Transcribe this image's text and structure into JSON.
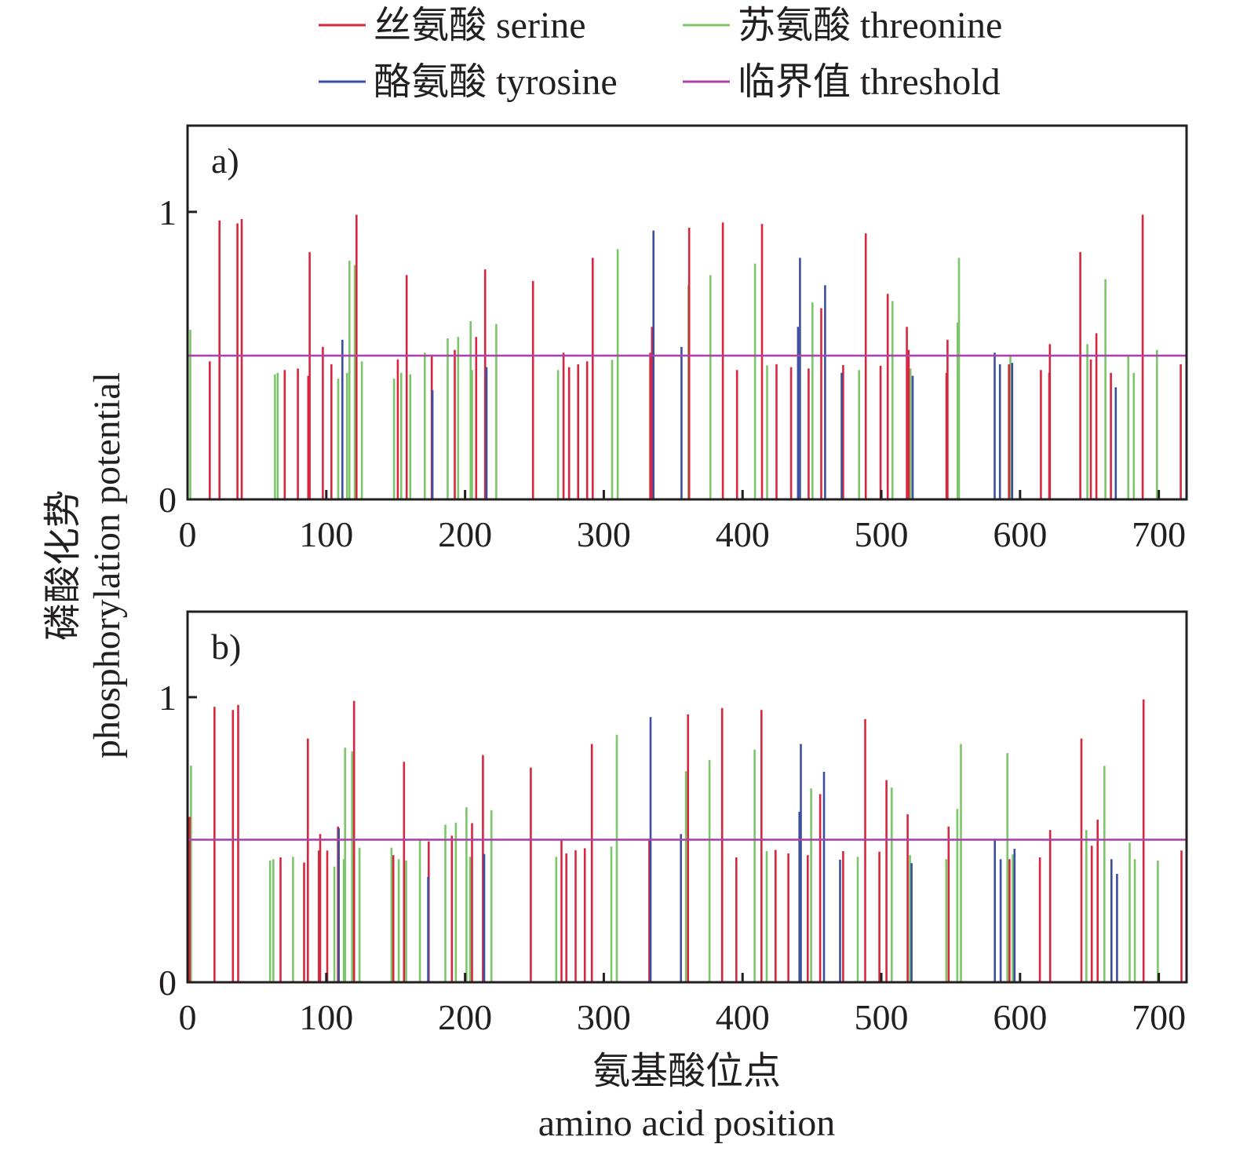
{
  "chart_data": {
    "type": "bar",
    "subtype": "stem/needle plot",
    "xlabel_zh": "氨基酸位点",
    "xlabel": "amino acid position",
    "ylabel_zh": "磷酸化势",
    "ylabel": "phosphorylation potential",
    "xlim": [
      0,
      720
    ],
    "ylim": [
      0,
      1.3
    ],
    "xticks": [
      0,
      100,
      200,
      300,
      400,
      500,
      600,
      700
    ],
    "yticks": [
      0,
      1
    ],
    "xtick_labels": [
      "0",
      "100",
      "200",
      "300",
      "400",
      "500",
      "600",
      "700"
    ],
    "ytick_labels": [
      "0",
      "1"
    ],
    "grid": false,
    "legend_position": "top-center",
    "legend": [
      {
        "key": "serine",
        "label": "丝氨酸 serine",
        "color": "#d7263d"
      },
      {
        "key": "threonine",
        "label": "苏氨酸 threonine",
        "color": "#7cc66a"
      },
      {
        "key": "tyrosine",
        "label": "酪氨酸 tyrosine",
        "color": "#3b4ea0"
      },
      {
        "key": "threshold",
        "label": "临界值 threshold",
        "color": "#a646a8"
      }
    ],
    "threshold": 0.5,
    "panels": [
      {
        "label": "a)",
        "series": [
          {
            "name": "serine",
            "points": [
              [
                16,
                0.48
              ],
              [
                23,
                0.97
              ],
              [
                36,
                0.96
              ],
              [
                39,
                0.975
              ],
              [
                70,
                0.45
              ],
              [
                79.5,
                0.455
              ],
              [
                87,
                0.43
              ],
              [
                88,
                0.86
              ],
              [
                97.5,
                0.53
              ],
              [
                103.7,
                0.47
              ],
              [
                121.8,
                0.99
              ],
              [
                151.5,
                0.487
              ],
              [
                157.9,
                0.78
              ],
              [
                176,
                0.5
              ],
              [
                192.6,
                0.52
              ],
              [
                208,
                0.565
              ],
              [
                214.5,
                0.8
              ],
              [
                249,
                0.76
              ],
              [
                271,
                0.51
              ],
              [
                275,
                0.46
              ],
              [
                281.5,
                0.47
              ],
              [
                288,
                0.48
              ],
              [
                292,
                0.84
              ],
              [
                333.5,
                0.51
              ],
              [
                334.7,
                0.6
              ],
              [
                361.5,
                0.945
              ],
              [
                385.8,
                0.963
              ],
              [
                396,
                0.45
              ],
              [
                414,
                0.958
              ],
              [
                424.5,
                0.47
              ],
              [
                435,
                0.46
              ],
              [
                447.6,
                0.455
              ],
              [
                456.7,
                0.665
              ],
              [
                472.5,
                0.467
              ],
              [
                488.8,
                0.925
              ],
              [
                499.5,
                0.465
              ],
              [
                504.6,
                0.715
              ],
              [
                518.4,
                0.6
              ],
              [
                519.7,
                0.52
              ],
              [
                547.7,
                0.555
              ],
              [
                547,
                0.44
              ],
              [
                592,
                0.47
              ],
              [
                615,
                0.45
              ],
              [
                621.5,
                0.54
              ],
              [
                621,
                0.44
              ],
              [
                643.4,
                0.86
              ],
              [
                651,
                0.487
              ],
              [
                655,
                0.578
              ],
              [
                665.5,
                0.44
              ],
              [
                688.4,
                0.99
              ],
              [
                715.8,
                0.47
              ]
            ]
          },
          {
            "name": "threonine",
            "points": [
              [
                2,
                0.59
              ],
              [
                63,
                0.435
              ],
              [
                65,
                0.44
              ],
              [
                108.6,
                0.42
              ],
              [
                115,
                0.44
              ],
              [
                116.7,
                0.83
              ],
              [
                120.5,
                0.815
              ],
              [
                125.6,
                0.48
              ],
              [
                148.8,
                0.42
              ],
              [
                154,
                0.44
              ],
              [
                160.5,
                0.435
              ],
              [
                171,
                0.51
              ],
              [
                187.5,
                0.56
              ],
              [
                195,
                0.565
              ],
              [
                204,
                0.62
              ],
              [
                205,
                0.45
              ],
              [
                222.5,
                0.61
              ],
              [
                267,
                0.45
              ],
              [
                306,
                0.485
              ],
              [
                310,
                0.87
              ],
              [
                361,
                0.745
              ],
              [
                376.8,
                0.78
              ],
              [
                409,
                0.82
              ],
              [
                417.7,
                0.466
              ],
              [
                450.4,
                0.685
              ],
              [
                484,
                0.45
              ],
              [
                508,
                0.69
              ],
              [
                521,
                0.455
              ],
              [
                556,
                0.84
              ],
              [
                555,
                0.615
              ],
              [
                593,
                0.5
              ],
              [
                648.5,
                0.54
              ],
              [
                661.5,
                0.766
              ],
              [
                678,
                0.5
              ],
              [
                682,
                0.44
              ],
              [
                698.7,
                0.52
              ]
            ]
          },
          {
            "name": "tyrosine",
            "points": [
              [
                111.6,
                0.555
              ],
              [
                176.5,
                0.38
              ],
              [
                215.5,
                0.46
              ],
              [
                335.8,
                0.935
              ],
              [
                356,
                0.53
              ],
              [
                440,
                0.6
              ],
              [
                441.4,
                0.84
              ],
              [
                459.5,
                0.745
              ],
              [
                471.4,
                0.44
              ],
              [
                522.6,
                0.43
              ],
              [
                581.7,
                0.51
              ],
              [
                585.5,
                0.47
              ],
              [
                594.3,
                0.475
              ],
              [
                669,
                0.39
              ]
            ]
          }
        ]
      },
      {
        "label": "b)",
        "series": [
          {
            "name": "serine",
            "points": [
              [
                1.5,
                0.58
              ],
              [
                19.4,
                0.966
              ],
              [
                32.7,
                0.955
              ],
              [
                36.5,
                0.973
              ],
              [
                67,
                0.438
              ],
              [
                84,
                0.42
              ],
              [
                86.7,
                0.855
              ],
              [
                94.6,
                0.462
              ],
              [
                95.6,
                0.52
              ],
              [
                100.7,
                0.462
              ],
              [
                108.4,
                0.546
              ],
              [
                120,
                0.987
              ],
              [
                148.3,
                0.446
              ],
              [
                156,
                0.773
              ],
              [
                173.8,
                0.494
              ],
              [
                190.5,
                0.514
              ],
              [
                205,
                0.558
              ],
              [
                212.9,
                0.797
              ],
              [
                247.4,
                0.753
              ],
              [
                269.5,
                0.5
              ],
              [
                273,
                0.452
              ],
              [
                279.7,
                0.463
              ],
              [
                286.3,
                0.47
              ],
              [
                291.4,
                0.836
              ],
              [
                332.8,
                0.5
              ],
              [
                360.7,
                0.94
              ],
              [
                385.3,
                0.962
              ],
              [
                395.5,
                0.438
              ],
              [
                413.6,
                0.955
              ],
              [
                423.8,
                0.464
              ],
              [
                433,
                0.452
              ],
              [
                447,
                0.446
              ],
              [
                455.9,
                0.66
              ],
              [
                472.5,
                0.46
              ],
              [
                488.4,
                0.923
              ],
              [
                498.6,
                0.458
              ],
              [
                503.7,
                0.709
              ],
              [
                519,
                0.589
              ],
              [
                548.5,
                0.546
              ],
              [
                592.4,
                0.432
              ],
              [
                614.3,
                0.438
              ],
              [
                621.7,
                0.534
              ],
              [
                644.2,
                0.855
              ],
              [
                651.7,
                0.479
              ],
              [
                655.9,
                0.571
              ],
              [
                689,
                0.992
              ],
              [
                716.3,
                0.462
              ]
            ]
          },
          {
            "name": "threonine",
            "points": [
              [
                2.5,
                0.76
              ],
              [
                59.5,
                0.427
              ],
              [
                61.8,
                0.432
              ],
              [
                76,
                0.44
              ],
              [
                105.8,
                0.406
              ],
              [
                112.6,
                0.432
              ],
              [
                113.5,
                0.823
              ],
              [
                118.6,
                0.81
              ],
              [
                123.9,
                0.472
              ],
              [
                147,
                0.472
              ],
              [
                152.2,
                0.432
              ],
              [
                157.5,
                0.427
              ],
              [
                167.5,
                0.503
              ],
              [
                185.8,
                0.553
              ],
              [
                193.4,
                0.56
              ],
              [
                201,
                0.614
              ],
              [
                203.6,
                0.44
              ],
              [
                219,
                0.604
              ],
              [
                265.7,
                0.44
              ],
              [
                305.4,
                0.476
              ],
              [
                309.4,
                0.868
              ],
              [
                359.2,
                0.74
              ],
              [
                376.2,
                0.78
              ],
              [
                408.7,
                0.816
              ],
              [
                417.4,
                0.46
              ],
              [
                449.4,
                0.68
              ],
              [
                483,
                0.44
              ],
              [
                507.5,
                0.683
              ],
              [
                520.7,
                0.446
              ],
              [
                546.8,
                0.432
              ],
              [
                554.8,
                0.608
              ],
              [
                557.4,
                0.836
              ],
              [
                590.9,
                0.804
              ],
              [
                594.7,
                0.448
              ],
              [
                647.8,
                0.534
              ],
              [
                660.8,
                0.759
              ],
              [
                679,
                0.49
              ],
              [
                682.7,
                0.432
              ],
              [
                699.3,
                0.427
              ]
            ]
          },
          {
            "name": "tyrosine",
            "points": [
              [
                109,
                0.54
              ],
              [
                173.4,
                0.37
              ],
              [
                213.8,
                0.45
              ],
              [
                333.7,
                0.93
              ],
              [
                355.6,
                0.52
              ],
              [
                441,
                0.598
              ],
              [
                442,
                0.836
              ],
              [
                458.7,
                0.738
              ],
              [
                470.3,
                0.43
              ],
              [
                521.8,
                0.418
              ],
              [
                581.8,
                0.5
              ],
              [
                586,
                0.432
              ],
              [
                596,
                0.468
              ],
              [
                665.9,
                0.432
              ],
              [
                669.9,
                0.38
              ]
            ]
          }
        ]
      }
    ]
  }
}
